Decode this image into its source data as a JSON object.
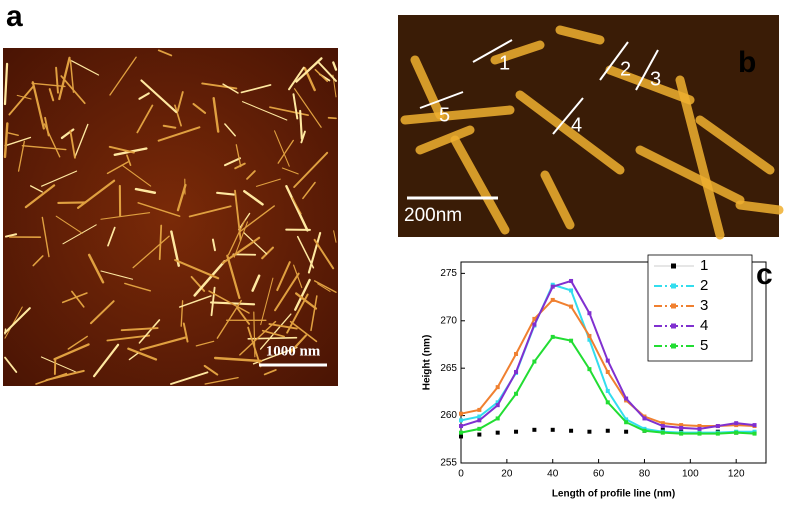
{
  "panels": {
    "a": {
      "label": "a",
      "scale_bar": "1000 nm"
    },
    "b": {
      "label": "b",
      "scale_bar": "200nm",
      "profile_labels": [
        "1",
        "2",
        "3",
        "4",
        "5"
      ]
    },
    "c": {
      "label": "c"
    }
  },
  "chart_data": {
    "type": "line",
    "xlabel": "Length of profile line (nm)",
    "ylabel": "Height (nm)",
    "x": [
      0,
      8,
      16,
      24,
      32,
      40,
      48,
      56,
      64,
      72,
      80,
      88,
      96,
      104,
      112,
      120,
      128
    ],
    "series": [
      {
        "name": "1",
        "color": "#000000",
        "linestyle": "dotted",
        "values": [
          257.8,
          258.0,
          258.2,
          258.3,
          258.5,
          258.5,
          258.4,
          258.3,
          258.4,
          258.3,
          258.4,
          258.5,
          258.3,
          258.2,
          258.3,
          258.2,
          258.2
        ]
      },
      {
        "name": "2",
        "color": "#33ddee",
        "linestyle": "solid",
        "values": [
          259.5,
          259.9,
          261.4,
          264.5,
          269.5,
          273.8,
          273.2,
          268.0,
          262.6,
          259.6,
          258.6,
          258.3,
          258.2,
          258.2,
          258.2,
          258.3,
          258.3
        ]
      },
      {
        "name": "3",
        "color": "#f08030",
        "linestyle": "solid",
        "values": [
          260.2,
          260.6,
          263.0,
          266.5,
          270.2,
          272.2,
          271.5,
          268.4,
          264.6,
          261.6,
          259.9,
          259.2,
          259.0,
          258.9,
          258.9,
          259.0,
          258.9
        ]
      },
      {
        "name": "4",
        "color": "#8030d0",
        "linestyle": "solid",
        "values": [
          258.9,
          259.5,
          261.1,
          264.6,
          269.6,
          273.6,
          274.2,
          270.8,
          265.8,
          261.8,
          259.7,
          258.9,
          258.7,
          258.6,
          258.9,
          259.2,
          259.0
        ]
      },
      {
        "name": "5",
        "color": "#22dd33",
        "linestyle": "solid",
        "values": [
          258.2,
          258.6,
          259.7,
          262.3,
          265.7,
          268.3,
          267.9,
          264.9,
          261.4,
          259.3,
          258.4,
          258.2,
          258.1,
          258.1,
          258.1,
          258.2,
          258.1
        ]
      }
    ],
    "xlim": [
      0,
      133
    ],
    "ylim": [
      255,
      276.2
    ],
    "xticks": [
      0,
      20,
      40,
      60,
      80,
      100,
      120
    ],
    "yticks": [
      255,
      260,
      265,
      270,
      275
    ],
    "legend": "top-right"
  }
}
